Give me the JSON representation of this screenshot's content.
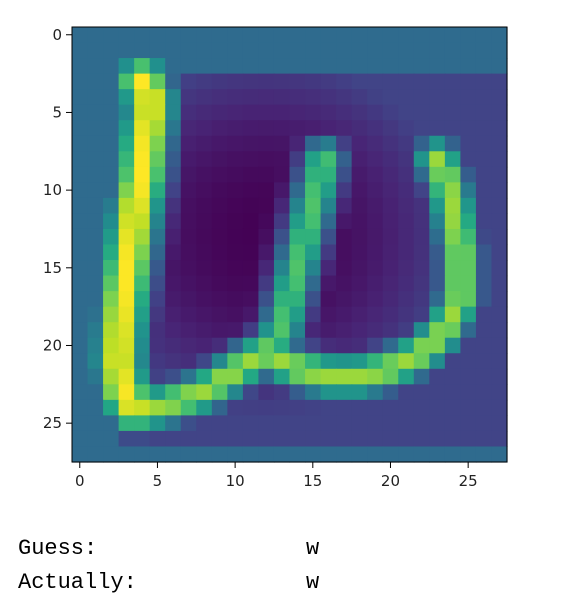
{
  "chart_data": {
    "type": "heatmap",
    "colormap": "viridis",
    "title": "",
    "xlabel": "",
    "ylabel": "",
    "rows": 28,
    "cols": 28,
    "xlim": [
      -0.5,
      27.5
    ],
    "ylim": [
      27.5,
      -0.5
    ],
    "x_ticks": [
      0,
      5,
      10,
      15,
      20,
      25
    ],
    "y_ticks": [
      0,
      5,
      10,
      15,
      20,
      25
    ],
    "x_tick_labels": [
      "0",
      "5",
      "10",
      "15",
      "20",
      "25"
    ],
    "y_tick_labels": [
      "0",
      "5",
      "10",
      "15",
      "20",
      "25"
    ],
    "grid": false,
    "legend": "none",
    "value_range": [
      0,
      1
    ],
    "background_value": 0.35,
    "dark_region": {
      "rows": [
        3,
        26
      ],
      "cols": [
        3,
        27
      ],
      "center": [
        13,
        12
      ],
      "min_value": 0.0,
      "edge_value": 0.2
    },
    "strokes": [
      {
        "name": "left-bar",
        "points": [
          [
            3,
            4
          ],
          [
            4,
            4.5
          ],
          [
            5,
            4.5
          ],
          [
            7,
            4.2
          ],
          [
            9,
            4
          ],
          [
            11,
            3.6
          ],
          [
            14,
            3.2
          ],
          [
            17,
            2.8
          ],
          [
            19,
            2.6
          ],
          [
            21,
            2.5
          ],
          [
            23,
            2.8
          ],
          [
            24,
            3.5
          ]
        ],
        "peak": 1.0,
        "width": 1.2
      },
      {
        "name": "bottom-left",
        "points": [
          [
            24,
            3.5
          ],
          [
            24,
            5
          ],
          [
            23.5,
            6.5
          ],
          [
            23,
            8
          ],
          [
            22,
            9.5
          ],
          [
            21,
            11
          ],
          [
            20.5,
            12
          ]
        ],
        "peak": 0.85,
        "width": 1.0
      },
      {
        "name": "middle-stroke",
        "points": [
          [
            20.5,
            12
          ],
          [
            19,
            13
          ],
          [
            17,
            13.5
          ],
          [
            15,
            14
          ],
          [
            13,
            14.5
          ],
          [
            11,
            15
          ],
          [
            9,
            15.5
          ],
          [
            8,
            15.7
          ]
        ],
        "peak": 0.72,
        "width": 1.0
      },
      {
        "name": "right-bottom",
        "points": [
          [
            20.5,
            12
          ],
          [
            21.5,
            14
          ],
          [
            22,
            16
          ],
          [
            22,
            18
          ],
          [
            21.5,
            20
          ],
          [
            20.5,
            22
          ],
          [
            19,
            23.5
          ],
          [
            17,
            24.5
          ],
          [
            14,
            24.5
          ],
          [
            11,
            24
          ],
          [
            9,
            23.5
          ],
          [
            8,
            23
          ]
        ],
        "peak": 0.85,
        "width": 1.0
      }
    ]
  },
  "output": {
    "guess_label": "Guess:",
    "guess_value": "w",
    "actual_label": "Actually:",
    "actual_value": "w"
  }
}
